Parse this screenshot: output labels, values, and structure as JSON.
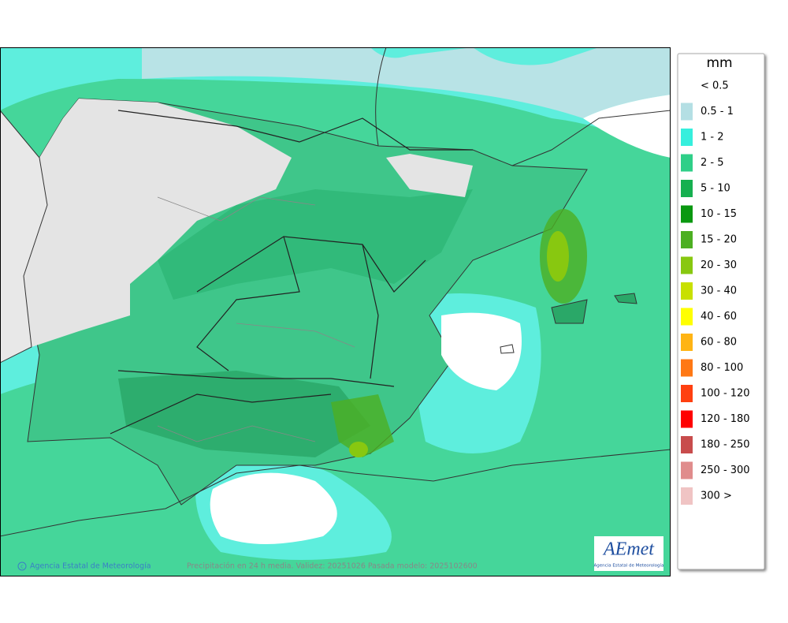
{
  "legend": {
    "title": "mm",
    "items": [
      {
        "label": "< 0.5",
        "color": "#ffffff"
      },
      {
        "label": "0.5 - 1",
        "color": "#b4dfe4"
      },
      {
        "label": "1 - 2",
        "color": "#36efdd"
      },
      {
        "label": "2 - 5",
        "color": "#2fcf88"
      },
      {
        "label": "5 - 10",
        "color": "#16b050"
      },
      {
        "label": "10 - 15",
        "color": "#0a9810"
      },
      {
        "label": "15 - 20",
        "color": "#4caf22"
      },
      {
        "label": "20 - 30",
        "color": "#88c810"
      },
      {
        "label": "30 - 40",
        "color": "#c8e000"
      },
      {
        "label": "40 - 60",
        "color": "#ffff00"
      },
      {
        "label": "60 - 80",
        "color": "#ffb414"
      },
      {
        "label": "80 - 100",
        "color": "#ff7814"
      },
      {
        "label": "100 - 120",
        "color": "#ff4010"
      },
      {
        "label": "120 - 180",
        "color": "#ff0000"
      },
      {
        "label": "180 - 250",
        "color": "#c84c4c"
      },
      {
        "label": "250 - 300",
        "color": "#e08c8c"
      },
      {
        "label": "300 >",
        "color": "#f0c4c4"
      }
    ]
  },
  "footer": {
    "credit": "Agencia Estatal de Meteorología",
    "caption": "Precipitación en 24 h media. Validez: 20251026 Pasada modelo: 2025102600"
  },
  "logo": {
    "name": "AEmet",
    "subtitle": "Agencia Estatal de Meteorología"
  }
}
